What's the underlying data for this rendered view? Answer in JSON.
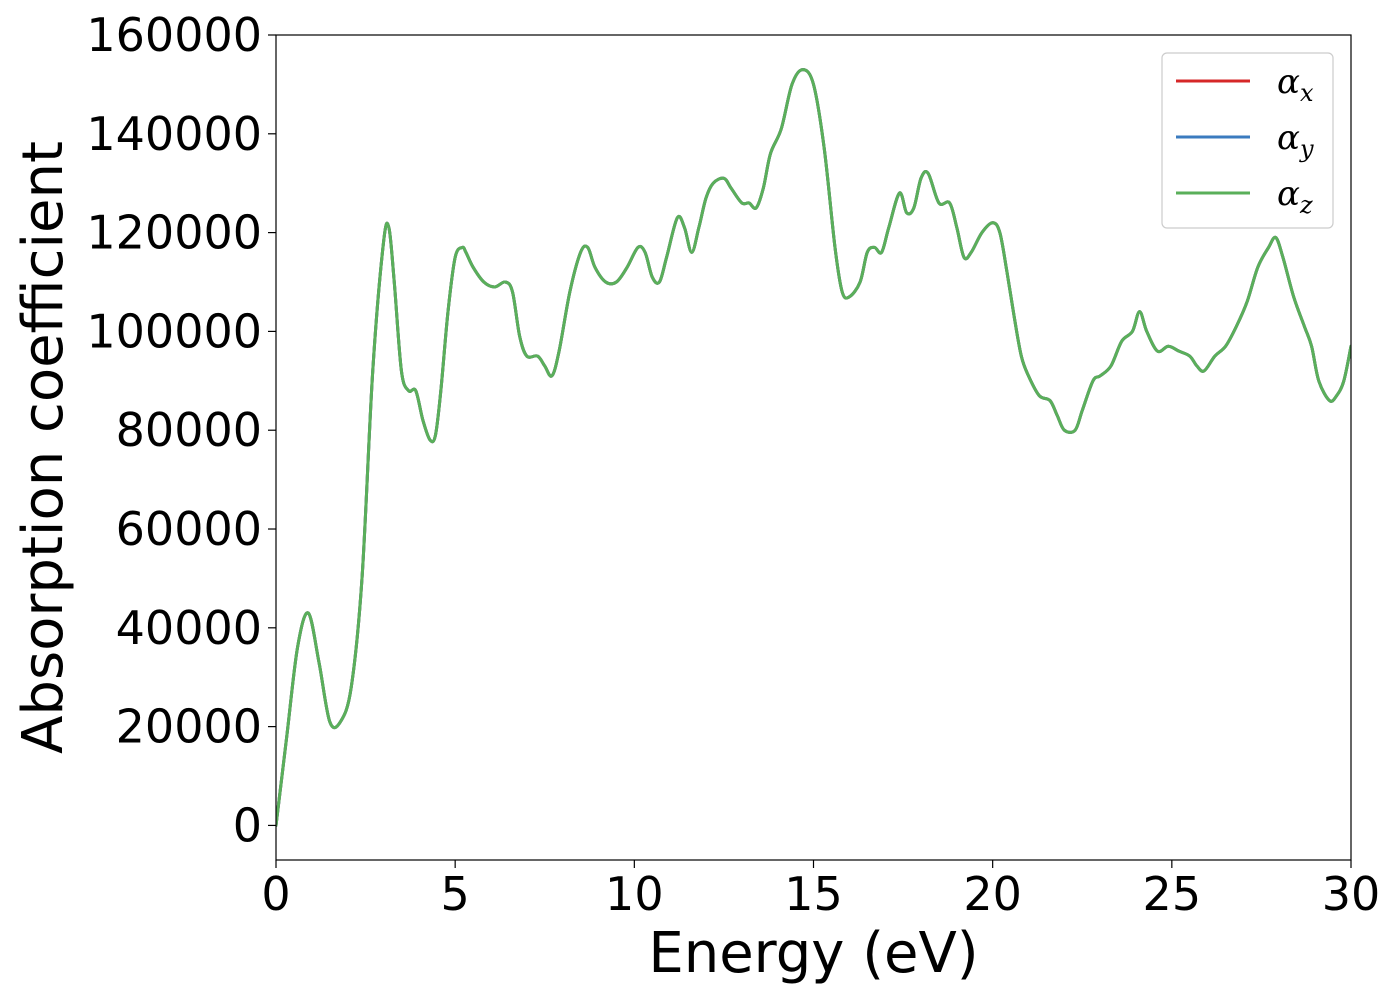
{
  "chart_data": {
    "type": "line",
    "xlabel": "Energy (eV)",
    "ylabel": "Absorption coefficient",
    "xlim": [
      0,
      30
    ],
    "ylim": [
      -7000,
      160000
    ],
    "xticks": [
      0,
      5,
      10,
      15,
      20,
      25,
      30
    ],
    "xtick_labels": [
      "0",
      "5",
      "10",
      "15",
      "20",
      "25",
      "30"
    ],
    "yticks": [
      0,
      20000,
      40000,
      60000,
      80000,
      100000,
      120000,
      140000,
      160000
    ],
    "ytick_labels": [
      "0",
      "20000",
      "40000",
      "60000",
      "80000",
      "100000",
      "120000",
      "140000",
      "160000"
    ],
    "grid": false,
    "legend_position": "top-right",
    "x": [
      0,
      0.3,
      0.6,
      0.9,
      1.2,
      1.5,
      1.8,
      2.1,
      2.4,
      2.7,
      3.0,
      3.15,
      3.3,
      3.5,
      3.7,
      3.9,
      4.1,
      4.3,
      4.45,
      4.6,
      4.8,
      5.0,
      5.2,
      5.3,
      5.5,
      5.8,
      6.1,
      6.4,
      6.6,
      6.8,
      7.0,
      7.3,
      7.5,
      7.7,
      7.9,
      8.2,
      8.5,
      8.7,
      8.9,
      9.2,
      9.5,
      9.8,
      10.1,
      10.3,
      10.5,
      10.7,
      10.9,
      11.2,
      11.4,
      11.6,
      11.8,
      12.0,
      12.2,
      12.5,
      12.7,
      13.0,
      13.2,
      13.4,
      13.6,
      13.8,
      14.1,
      14.4,
      14.7,
      15.0,
      15.3,
      15.6,
      15.8,
      16.0,
      16.3,
      16.5,
      16.7,
      16.9,
      17.1,
      17.4,
      17.6,
      17.8,
      18.0,
      18.2,
      18.5,
      18.8,
      19.0,
      19.2,
      19.4,
      19.7,
      20.0,
      20.2,
      20.4,
      20.6,
      20.8,
      21.0,
      21.3,
      21.6,
      21.8,
      22.0,
      22.3,
      22.5,
      22.8,
      23.0,
      23.3,
      23.6,
      23.9,
      24.1,
      24.3,
      24.6,
      24.9,
      25.2,
      25.5,
      25.7,
      25.9,
      26.2,
      26.5,
      26.8,
      27.1,
      27.4,
      27.7,
      27.9,
      28.1,
      28.4,
      28.7,
      28.9,
      29.1,
      29.4,
      29.6,
      29.8,
      30.0
    ],
    "y": [
      0,
      18000,
      36000,
      43000,
      33000,
      21000,
      21000,
      28000,
      50000,
      92000,
      118000,
      121000,
      110000,
      92000,
      88000,
      88000,
      82000,
      78000,
      79000,
      88000,
      104000,
      115000,
      117000,
      116000,
      113000,
      110000,
      109000,
      110000,
      108000,
      99000,
      95000,
      95000,
      93000,
      91000,
      96000,
      108000,
      116000,
      117000,
      113000,
      110000,
      110000,
      113000,
      117000,
      116000,
      111000,
      110000,
      115000,
      123000,
      121000,
      116000,
      121000,
      127000,
      130000,
      131000,
      129000,
      126000,
      126000,
      125000,
      129000,
      136000,
      141000,
      150000,
      153000,
      150000,
      137000,
      117000,
      108000,
      107000,
      110000,
      116000,
      117000,
      116000,
      121000,
      128000,
      124000,
      125000,
      131000,
      132000,
      126000,
      126000,
      121000,
      115000,
      116000,
      120000,
      122000,
      120000,
      112000,
      103000,
      95000,
      91000,
      87000,
      86000,
      83000,
      80000,
      80000,
      84000,
      90000,
      91000,
      93000,
      98000,
      100000,
      104000,
      100000,
      96000,
      97000,
      96000,
      95000,
      93000,
      92000,
      95000,
      97000,
      101000,
      106000,
      113000,
      117000,
      119000,
      115000,
      107000,
      101000,
      97000,
      90000,
      86000,
      87000,
      90000,
      97000
    ],
    "series": [
      {
        "name": "α_x",
        "label_main": "α",
        "label_sub": "x",
        "color": "#d62728"
      },
      {
        "name": "α_y",
        "label_main": "α",
        "label_sub": "y",
        "color": "#3b7bbf"
      },
      {
        "name": "α_z",
        "label_main": "α",
        "label_sub": "z",
        "color": "#5aaf5a"
      }
    ]
  }
}
